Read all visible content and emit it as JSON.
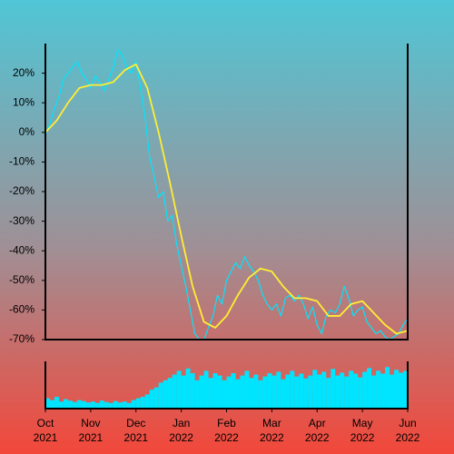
{
  "chart_data": [
    {
      "type": "line",
      "xlim": [
        0,
        8
      ],
      "ylim": [
        -70,
        30
      ],
      "yticks": [
        {
          "value": -70,
          "label": "-70%"
        },
        {
          "value": -60,
          "label": "-60%"
        },
        {
          "value": -50,
          "label": "-50%"
        },
        {
          "value": -40,
          "label": "-40%"
        },
        {
          "value": -30,
          "label": "-30%"
        },
        {
          "value": -20,
          "label": "-20%"
        },
        {
          "value": -10,
          "label": "-10%"
        },
        {
          "value": 0,
          "label": "0%"
        },
        {
          "value": 10,
          "label": "10%"
        },
        {
          "value": 20,
          "label": "20%"
        }
      ],
      "series": [
        {
          "color": "#00e5ff",
          "x": [
            0,
            0.1,
            0.2,
            0.3,
            0.4,
            0.5,
            0.6,
            0.7,
            0.8,
            0.9,
            1,
            1.1,
            1.2,
            1.3,
            1.4,
            1.5,
            1.6,
            1.7,
            1.8,
            1.9,
            2,
            2.1,
            2.2,
            2.3,
            2.4,
            2.5,
            2.6,
            2.7,
            2.8,
            2.9,
            3,
            3.1,
            3.2,
            3.3,
            3.4,
            3.5,
            3.6,
            3.7,
            3.8,
            3.9,
            4,
            4.1,
            4.2,
            4.3,
            4.4,
            4.5,
            4.6,
            4.7,
            4.8,
            4.9,
            5,
            5.1,
            5.2,
            5.3,
            5.4,
            5.5,
            5.6,
            5.7,
            5.8,
            5.9,
            6,
            6.1,
            6.2,
            6.3,
            6.4,
            6.5,
            6.6,
            6.7,
            6.8,
            6.9,
            7,
            7.1,
            7.2,
            7.3,
            7.4,
            7.5,
            7.6,
            7.7,
            7.8,
            7.9,
            8
          ],
          "values": [
            -1,
            3,
            8,
            12,
            18,
            20,
            22,
            24,
            20,
            18,
            15,
            19,
            17,
            14,
            18,
            22,
            28,
            26,
            22,
            20,
            24,
            15,
            5,
            -8,
            -15,
            -22,
            -20,
            -30,
            -28,
            -38,
            -45,
            -52,
            -60,
            -68,
            -70,
            -70,
            -66,
            -62,
            -55,
            -58,
            -50,
            -47,
            -44,
            -46,
            -42,
            -45,
            -47,
            -50,
            -55,
            -58,
            -60,
            -58,
            -62,
            -56,
            -55,
            -57,
            -55,
            -58,
            -63,
            -59,
            -65,
            -68,
            -62,
            -60,
            -61,
            -58,
            -52,
            -56,
            -62,
            -60,
            -59,
            -64,
            -66,
            -68,
            -67,
            -69,
            -70,
            -69,
            -68,
            -65,
            -63
          ]
        },
        {
          "color": "#ffee33",
          "x": [
            0,
            0.25,
            0.5,
            0.75,
            1,
            1.25,
            1.5,
            1.75,
            2,
            2.25,
            2.5,
            2.75,
            3,
            3.25,
            3.5,
            3.75,
            4,
            4.25,
            4.5,
            4.75,
            5,
            5.25,
            5.5,
            5.75,
            6,
            6.25,
            6.5,
            6.75,
            7,
            7.25,
            7.5,
            7.75,
            8
          ],
          "values": [
            0,
            4,
            10,
            15,
            16,
            16,
            17,
            21,
            23,
            15,
            0,
            -17,
            -35,
            -52,
            -64,
            -66,
            -62,
            -55,
            -49,
            -46,
            -47,
            -52,
            -56,
            -56,
            -57,
            -62,
            -62,
            -58,
            -57,
            -61,
            -65,
            -68,
            -67
          ]
        }
      ]
    },
    {
      "type": "bar",
      "color": "#00e5ff",
      "xlim": [
        0,
        8
      ],
      "ylim": [
        0,
        100
      ],
      "xticks": [
        {
          "value": 0,
          "label": "Oct 2021"
        },
        {
          "value": 1,
          "label": "Nov 2021"
        },
        {
          "value": 2,
          "label": "Dec 2021"
        },
        {
          "value": 3,
          "label": "Jan 2022"
        },
        {
          "value": 4,
          "label": "Feb 2022"
        },
        {
          "value": 5,
          "label": "Mar 2022"
        },
        {
          "value": 6,
          "label": "Apr 2022"
        },
        {
          "value": 7,
          "label": "May 2022"
        },
        {
          "value": 8,
          "label": "Jun 2022"
        }
      ],
      "x": [
        0.05,
        0.15,
        0.25,
        0.35,
        0.45,
        0.55,
        0.65,
        0.75,
        0.85,
        0.95,
        1.05,
        1.15,
        1.25,
        1.35,
        1.45,
        1.55,
        1.65,
        1.75,
        1.85,
        1.95,
        2.05,
        2.15,
        2.25,
        2.35,
        2.45,
        2.55,
        2.65,
        2.75,
        2.85,
        2.95,
        3.05,
        3.15,
        3.25,
        3.35,
        3.45,
        3.55,
        3.65,
        3.75,
        3.85,
        3.95,
        4.05,
        4.15,
        4.25,
        4.35,
        4.45,
        4.55,
        4.65,
        4.75,
        4.85,
        4.95,
        5.05,
        5.15,
        5.25,
        5.35,
        5.45,
        5.55,
        5.65,
        5.75,
        5.85,
        5.95,
        6.05,
        6.15,
        6.25,
        6.35,
        6.45,
        6.55,
        6.65,
        6.75,
        6.85,
        6.95,
        7.05,
        7.15,
        7.25,
        7.35,
        7.45,
        7.55,
        7.65,
        7.75,
        7.85,
        7.95
      ],
      "values": [
        22,
        18,
        25,
        15,
        20,
        17,
        14,
        18,
        16,
        13,
        15,
        12,
        17,
        14,
        12,
        16,
        13,
        15,
        12,
        18,
        22,
        25,
        30,
        40,
        45,
        55,
        60,
        65,
        72,
        80,
        70,
        85,
        75,
        60,
        70,
        80,
        65,
        75,
        70,
        60,
        68,
        75,
        62,
        70,
        80,
        65,
        72,
        60,
        68,
        75,
        70,
        78,
        62,
        72,
        80,
        68,
        74,
        64,
        70,
        82,
        72,
        78,
        65,
        84,
        70,
        76,
        68,
        80,
        74,
        66,
        78,
        86,
        70,
        80,
        74,
        88,
        72,
        82,
        76,
        80
      ]
    }
  ]
}
